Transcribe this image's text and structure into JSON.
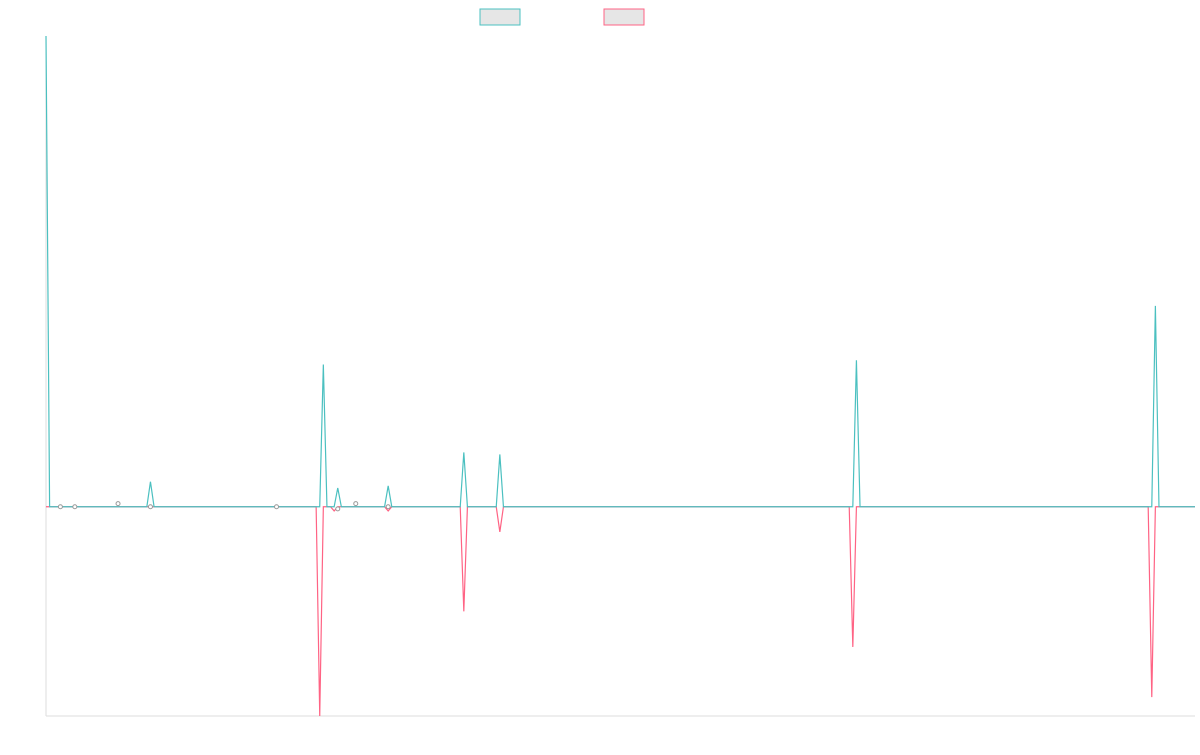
{
  "chart_data": {
    "type": "line",
    "title": "",
    "xlabel": "",
    "ylabel": "",
    "grid": false,
    "legend_position": "top-center",
    "x_count": 320,
    "ylim": [
      -1.0,
      2.25
    ],
    "colors": {
      "series_a": "#4bc0c0",
      "series_b": "#ff6384",
      "legend_fill": "#e6e6e6",
      "axis": "#dddddd"
    },
    "series": [
      {
        "color_key": "series_a",
        "points": [
          [
            0,
            2.25
          ],
          [
            1,
            0
          ],
          [
            76,
            0
          ],
          [
            77,
            0.68
          ],
          [
            78,
            0
          ],
          [
            224,
            0
          ],
          [
            225,
            0.7
          ],
          [
            226,
            0
          ],
          [
            307,
            0
          ],
          [
            308,
            0.96
          ],
          [
            309,
            0
          ]
        ],
        "blips": [
          [
            29,
            0.12
          ],
          [
            81,
            0.09
          ],
          [
            95,
            0.1
          ],
          [
            116,
            0.26
          ],
          [
            126,
            0.25
          ]
        ]
      },
      {
        "color_key": "series_b",
        "points": [
          [
            0,
            0
          ],
          [
            75,
            0
          ],
          [
            76,
            -1.0
          ],
          [
            77,
            0
          ],
          [
            115,
            0
          ],
          [
            116,
            -0.5
          ],
          [
            117,
            0
          ],
          [
            125,
            0
          ],
          [
            126,
            -0.12
          ],
          [
            127,
            0
          ],
          [
            223,
            0
          ],
          [
            224,
            -0.67
          ],
          [
            225,
            0
          ],
          [
            306,
            0
          ],
          [
            307,
            -0.91
          ],
          [
            308,
            0
          ]
        ],
        "blips": [
          [
            80,
            -0.02
          ],
          [
            95,
            -0.02
          ]
        ]
      }
    ],
    "markers": [
      [
        4,
        0
      ],
      [
        8,
        0
      ],
      [
        20,
        0.015
      ],
      [
        29,
        0
      ],
      [
        64,
        0
      ],
      [
        81,
        -0.01
      ],
      [
        86,
        0.015
      ],
      [
        95,
        0
      ]
    ]
  }
}
